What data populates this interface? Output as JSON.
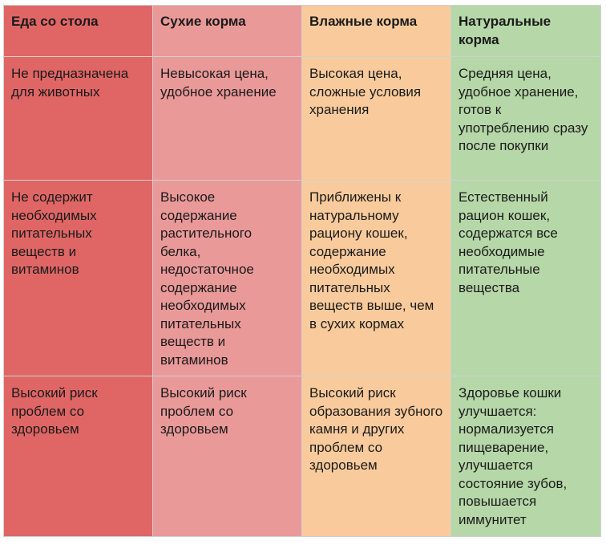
{
  "table": {
    "header": [
      "Еда со стола",
      "Сухие корма",
      "Влажные корма",
      "Натуральные корма"
    ],
    "rows": [
      [
        "Не предназначена для животных",
        "Невысокая цена, удобное хранение",
        "Высокая цена, сложные условия хранения",
        "Средняя цена, удобное хранение, готов к употреблению сразу после покупки"
      ],
      [
        "Не содержит необходимых питательных веществ и витаминов",
        "Высокое содержание растительного белка, недостаточное содержание необходимых питательных веществ и витаминов",
        "Приближены к натуральному рациону кошек, содержание необходимых питательных веществ выше, чем в сухих кормах",
        "Естественный рацион кошек, содержатся все необходимые питательные вещества"
      ],
      [
        "Высокий риск проблем со здоровьем",
        "Высокий риск проблем со здоровьем",
        "Высокий риск образования зубного камня и других проблем со здоровьем",
        "Здоровье кошки улучшается: нормализуется пищеварение, улучшается состояние зубов, повышается иммунитет"
      ]
    ]
  }
}
